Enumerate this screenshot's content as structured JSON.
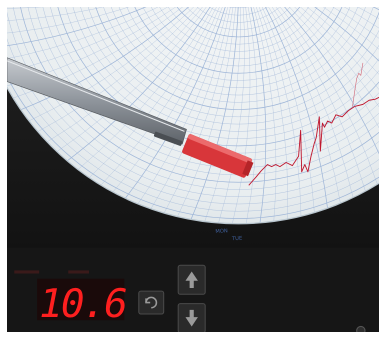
{
  "display": {
    "reading": "10.6",
    "reading_color": "#ff1f1f"
  },
  "chart": {
    "paper_color": "#eef1f2",
    "grid_color": "#9fb6d8",
    "pen_trace_color": "#c0182f",
    "scale_labels": [
      "MON",
      "TUE"
    ]
  },
  "controls": {
    "mode_button_icon": "refresh-icon",
    "up_button_icon": "arrow-up-icon",
    "down_button_icon": "arrow-down-icon"
  },
  "colors": {
    "bezel": "#141414",
    "pen_arm": "#8d9299",
    "pen_tip": "#d8363a"
  }
}
